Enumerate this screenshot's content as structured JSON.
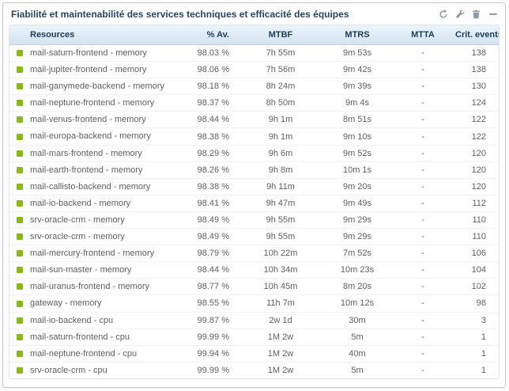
{
  "panel": {
    "title": "Fiabilité et maintenabilité des services techniques et efficacité des équipes",
    "toolbar": {
      "refresh": "refresh",
      "configure": "configure",
      "delete": "delete",
      "collapse": "collapse"
    }
  },
  "table": {
    "columns": [
      "Resources",
      "% Av.",
      "MTBF",
      "MTRS",
      "MTTA",
      "Crit. events"
    ],
    "rows": [
      {
        "status": "ok",
        "resource": "mail-saturn-frontend - memory",
        "availability": "98.03 %",
        "mtbf": "7h 55m",
        "mtrs": "9m 53s",
        "mtta": "-",
        "crit_events": "138"
      },
      {
        "status": "ok",
        "resource": "mail-jupiter-frontend - memory",
        "availability": "98.06 %",
        "mtbf": "7h 56m",
        "mtrs": "9m 42s",
        "mtta": "-",
        "crit_events": "138"
      },
      {
        "status": "ok",
        "resource": "mail-ganymede-backend - memory",
        "availability": "98.18 %",
        "mtbf": "8h 24m",
        "mtrs": "9m 39s",
        "mtta": "-",
        "crit_events": "130"
      },
      {
        "status": "ok",
        "resource": "mail-neptune-frontend - memory",
        "availability": "98.37 %",
        "mtbf": "8h 50m",
        "mtrs": "9m 4s",
        "mtta": "-",
        "crit_events": "124"
      },
      {
        "status": "ok",
        "resource": "mail-venus-frontend - memory",
        "availability": "98.44 %",
        "mtbf": "9h 1m",
        "mtrs": "8m 51s",
        "mtta": "-",
        "crit_events": "122"
      },
      {
        "status": "ok",
        "resource": "mail-europa-backend - memory",
        "availability": "98.38 %",
        "mtbf": "9h 1m",
        "mtrs": "9m 10s",
        "mtta": "-",
        "crit_events": "122"
      },
      {
        "status": "ok",
        "resource": "mail-mars-frontend - memory",
        "availability": "98.29 %",
        "mtbf": "9h 6m",
        "mtrs": "9m 52s",
        "mtta": "-",
        "crit_events": "120"
      },
      {
        "status": "ok",
        "resource": "mail-earth-frontend - memory",
        "availability": "98.26 %",
        "mtbf": "9h 8m",
        "mtrs": "10m 1s",
        "mtta": "-",
        "crit_events": "120"
      },
      {
        "status": "ok",
        "resource": "mail-callisto-backend - memory",
        "availability": "98.38 %",
        "mtbf": "9h 11m",
        "mtrs": "9m 20s",
        "mtta": "-",
        "crit_events": "120"
      },
      {
        "status": "ok",
        "resource": "mail-io-backend - memory",
        "availability": "98.41 %",
        "mtbf": "9h 47m",
        "mtrs": "9m 49s",
        "mtta": "-",
        "crit_events": "112"
      },
      {
        "status": "ok",
        "resource": "srv-oracle-crm - memory",
        "availability": "98.49 %",
        "mtbf": "9h 55m",
        "mtrs": "9m 29s",
        "mtta": "-",
        "crit_events": "110"
      },
      {
        "status": "ok",
        "resource": "srv-oracle-crm - memory",
        "availability": "98.49 %",
        "mtbf": "9h 55m",
        "mtrs": "9m 29s",
        "mtta": "-",
        "crit_events": "110"
      },
      {
        "status": "ok",
        "resource": "mail-mercury-frontend - memory",
        "availability": "98.79 %",
        "mtbf": "10h 22m",
        "mtrs": "7m 52s",
        "mtta": "-",
        "crit_events": "106"
      },
      {
        "status": "ok",
        "resource": "mail-sun-master - memory",
        "availability": "98.44 %",
        "mtbf": "10h 34m",
        "mtrs": "10m 23s",
        "mtta": "-",
        "crit_events": "104"
      },
      {
        "status": "ok",
        "resource": "mail-uranus-frontend - memory",
        "availability": "98.77 %",
        "mtbf": "10h 45m",
        "mtrs": "8m 20s",
        "mtta": "-",
        "crit_events": "102"
      },
      {
        "status": "ok",
        "resource": "gateway - memory",
        "availability": "98.55 %",
        "mtbf": "11h 7m",
        "mtrs": "10m 12s",
        "mtta": "-",
        "crit_events": "98"
      },
      {
        "status": "ok",
        "resource": "mail-io-backend - cpu",
        "availability": "99.87 %",
        "mtbf": "2w 1d",
        "mtrs": "30m",
        "mtta": "-",
        "crit_events": "3"
      },
      {
        "status": "ok",
        "resource": "mail-saturn-frontend - cpu",
        "availability": "99.99 %",
        "mtbf": "1M 2w",
        "mtrs": "5m",
        "mtta": "-",
        "crit_events": "1"
      },
      {
        "status": "ok",
        "resource": "mail-neptune-frontend - cpu",
        "availability": "99.94 %",
        "mtbf": "1M 2w",
        "mtrs": "40m",
        "mtta": "-",
        "crit_events": "1"
      },
      {
        "status": "ok",
        "resource": "srv-oracle-crm - cpu",
        "availability": "99.99 %",
        "mtbf": "1M 2w",
        "mtrs": "5m",
        "mtta": "-",
        "crit_events": "1"
      }
    ]
  },
  "colors": {
    "status_ok": "#88b917"
  }
}
